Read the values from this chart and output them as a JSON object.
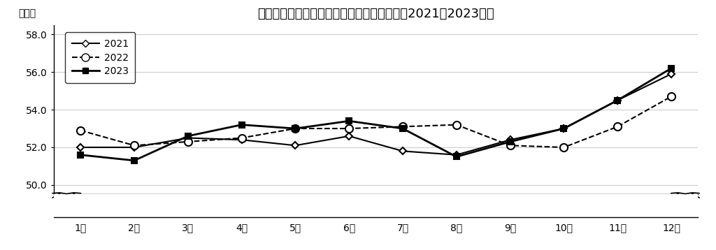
{
  "title": "ネットショッピング利用世帯の割合の推移（2021～2023年）",
  "ylabel": "（％）",
  "months": [
    "1月",
    "2月",
    "3月",
    "4月",
    "5月",
    "6月",
    "7月",
    "8月",
    "9月",
    "10月",
    "11月",
    "12月"
  ],
  "series": {
    "2021": [
      52.0,
      52.0,
      52.5,
      52.4,
      52.1,
      52.6,
      51.8,
      51.6,
      52.4,
      53.0,
      54.5,
      55.9
    ],
    "2022": [
      52.9,
      52.1,
      52.3,
      52.5,
      53.0,
      53.0,
      53.1,
      53.2,
      52.1,
      52.0,
      53.1,
      54.7
    ],
    "2023": [
      51.6,
      51.3,
      52.6,
      53.2,
      53.0,
      53.4,
      53.0,
      51.5,
      52.3,
      53.0,
      54.5,
      56.2
    ]
  },
  "ylim_main": [
    49.5,
    58.5
  ],
  "yticks_main": [
    50.0,
    52.0,
    54.0,
    56.0,
    58.0
  ],
  "ytick_labels": [
    "50.0",
    "52.0",
    "54.0",
    "56.0",
    "58.0"
  ],
  "bg_color": "#ffffff",
  "grid_color": "#cccccc"
}
